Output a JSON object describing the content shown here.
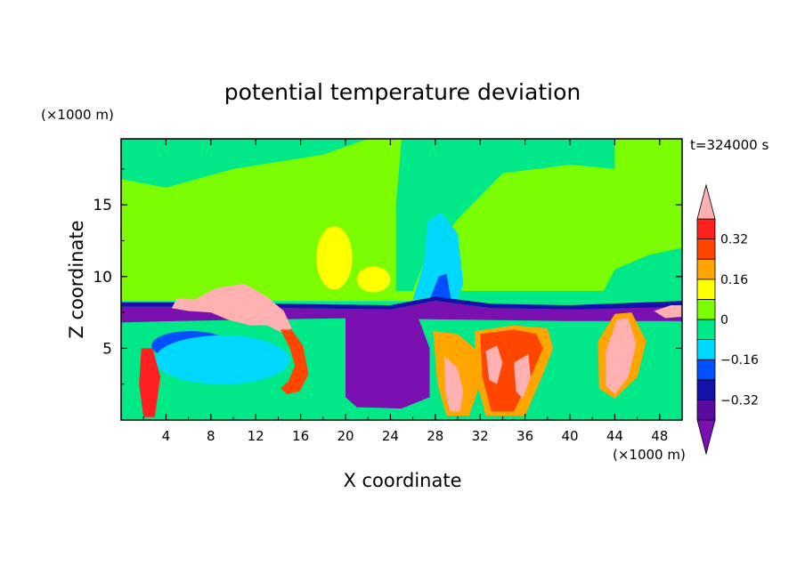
{
  "chart_data": {
    "type": "heatmap",
    "title": "potential temperature deviation",
    "xlabel": "X coordinate",
    "ylabel": "Z coordinate",
    "x_unit": "(×1000 m)",
    "y_unit": "(×1000 m)",
    "time_label": "t=324000 s",
    "xlim": [
      0,
      50
    ],
    "ylim": [
      0,
      19.6
    ],
    "x_ticks": [
      4,
      8,
      12,
      16,
      20,
      24,
      28,
      32,
      36,
      40,
      44,
      48
    ],
    "y_ticks": [
      5,
      10,
      15
    ],
    "colorbar": {
      "levels": [
        -0.4,
        -0.32,
        -0.24,
        -0.16,
        -0.08,
        0,
        0.08,
        0.16,
        0.24,
        0.32,
        0.4
      ],
      "labels": [
        "-0.32",
        "-0.16",
        "0",
        "0.16",
        "0.32"
      ],
      "label_values": [
        -0.32,
        -0.16,
        0,
        0.16,
        0.32
      ],
      "colors": [
        "#7a10b0",
        "#5a0aa0",
        "#1410a8",
        "#0050ff",
        "#00d8ff",
        "#00e887",
        "#7cfc00",
        "#ffff00",
        "#ffa500",
        "#ff4500",
        "#ff2020",
        "#ffb0b0"
      ],
      "extend": "both"
    },
    "regions": [
      {
        "name": "upper-green-mid",
        "color": "#7cfc00",
        "shape": "rect",
        "x": [
          0,
          50
        ],
        "z": [
          8.3,
          19.6
        ]
      },
      {
        "name": "neutral-band-left",
        "color": "#00e887",
        "shape": "rect",
        "x": [
          0,
          50
        ],
        "z": [
          0,
          8.3
        ]
      },
      {
        "name": "upper-left-neutral",
        "color": "#00e887",
        "shape": "poly",
        "pts": [
          [
            0,
            19.6
          ],
          [
            22,
            19.6
          ],
          [
            18,
            18.5
          ],
          [
            10,
            17.5
          ],
          [
            4,
            16.2
          ],
          [
            0,
            16.8
          ]
        ]
      },
      {
        "name": "upper-mid-neutral",
        "color": "#00e887",
        "shape": "poly",
        "pts": [
          [
            25,
            19.6
          ],
          [
            44,
            19.6
          ],
          [
            44,
            17.5
          ],
          [
            40,
            17.8
          ],
          [
            34,
            17.2
          ],
          [
            30,
            14
          ],
          [
            27,
            11
          ],
          [
            26,
            9
          ],
          [
            24.5,
            9
          ],
          [
            24.5,
            15
          ]
        ]
      },
      {
        "name": "upper-right-neutral",
        "color": "#00e887",
        "shape": "poly",
        "pts": [
          [
            30,
            9
          ],
          [
            43,
            9
          ],
          [
            44,
            10.5
          ],
          [
            47,
            11.5
          ],
          [
            50,
            12
          ],
          [
            50,
            8.3
          ],
          [
            30,
            8.3
          ]
        ]
      },
      {
        "name": "yellow-left",
        "color": "#ffff00",
        "shape": "ellipse",
        "cx": 19,
        "cz": 11.3,
        "rx": 1.6,
        "rz": 2.2
      },
      {
        "name": "yellow-mid",
        "color": "#ffff00",
        "shape": "ellipse",
        "cx": 22.5,
        "cz": 9.8,
        "rx": 1.5,
        "rz": 0.9
      },
      {
        "name": "cyan-column",
        "color": "#00d8ff",
        "shape": "poly",
        "pts": [
          [
            26,
            8.4
          ],
          [
            27,
            11
          ],
          [
            27.3,
            13.8
          ],
          [
            28.5,
            14.5
          ],
          [
            30,
            13
          ],
          [
            30.5,
            9.5
          ],
          [
            30,
            8.4
          ]
        ]
      },
      {
        "name": "blue-column",
        "color": "#0050ff",
        "shape": "poly",
        "pts": [
          [
            27.5,
            8.4
          ],
          [
            28.3,
            10
          ],
          [
            29,
            10.2
          ],
          [
            29.4,
            8.4
          ]
        ]
      },
      {
        "name": "purple-layer",
        "color": "#7a10b0",
        "shape": "poly",
        "pts": [
          [
            0,
            7.9
          ],
          [
            7,
            7.9
          ],
          [
            15,
            7.8
          ],
          [
            24,
            7.7
          ],
          [
            28,
            8.3
          ],
          [
            33,
            7.8
          ],
          [
            40,
            7.7
          ],
          [
            50,
            8.0
          ],
          [
            50,
            6.9
          ],
          [
            40,
            6.9
          ],
          [
            30,
            7.0
          ],
          [
            21,
            7.1
          ],
          [
            12,
            7.0
          ],
          [
            5,
            6.9
          ],
          [
            0,
            6.8
          ]
        ]
      },
      {
        "name": "dark-blue-rim",
        "color": "#1410a8",
        "shape": "poly",
        "pts": [
          [
            0,
            8.2
          ],
          [
            7,
            8.2
          ],
          [
            15,
            8.1
          ],
          [
            24,
            8.0
          ],
          [
            28,
            8.6
          ],
          [
            33,
            8.1
          ],
          [
            40,
            8.0
          ],
          [
            50,
            8.3
          ],
          [
            50,
            7.9
          ],
          [
            40,
            7.7
          ],
          [
            33,
            7.8
          ],
          [
            28,
            8.3
          ],
          [
            24,
            7.7
          ],
          [
            15,
            7.8
          ],
          [
            7,
            7.9
          ],
          [
            0,
            7.9
          ]
        ]
      },
      {
        "name": "purple-block",
        "color": "#7a10b0",
        "shape": "poly",
        "pts": [
          [
            20,
            7.2
          ],
          [
            26.5,
            7.1
          ],
          [
            27.5,
            5.0
          ],
          [
            27.5,
            1.6
          ],
          [
            25,
            0.8
          ],
          [
            21,
            0.9
          ],
          [
            20,
            1.6
          ]
        ]
      },
      {
        "name": "blue-patch-left",
        "color": "#0050ff",
        "shape": "ellipse",
        "cx": 6.2,
        "cz": 5.2,
        "rx": 3.5,
        "rz": 1.0
      },
      {
        "name": "cyan-lower-left",
        "color": "#00d8ff",
        "shape": "ellipse",
        "cx": 9,
        "cz": 4.2,
        "rx": 6,
        "rz": 1.7
      },
      {
        "name": "red-streak-left",
        "color": "#ff2020",
        "shape": "poly",
        "pts": [
          [
            1.8,
            5.0
          ],
          [
            2.8,
            5.0
          ],
          [
            3.5,
            3
          ],
          [
            3.0,
            0.2
          ],
          [
            2.0,
            0.2
          ],
          [
            1.6,
            2.5
          ]
        ]
      },
      {
        "name": "pink-region-left",
        "color": "#ffb0b0",
        "shape": "poly",
        "pts": [
          [
            4.5,
            7.8
          ],
          [
            5.0,
            8.5
          ],
          [
            6.5,
            8.4
          ],
          [
            8.5,
            9.2
          ],
          [
            11,
            9.5
          ],
          [
            13,
            8.6
          ],
          [
            14.5,
            7.6
          ],
          [
            15.2,
            6.4
          ],
          [
            14.3,
            6.1
          ],
          [
            13,
            6.6
          ],
          [
            11.5,
            6.6
          ],
          [
            9.5,
            7.0
          ],
          [
            8,
            7.5
          ],
          [
            6,
            7.6
          ]
        ]
      },
      {
        "name": "red-plume-mid-left",
        "color": "#ff4500",
        "shape": "poly",
        "pts": [
          [
            14.2,
            6.3
          ],
          [
            15.2,
            6.3
          ],
          [
            16.2,
            5.2
          ],
          [
            16.7,
            3.2
          ],
          [
            15.9,
            2.0
          ],
          [
            14.8,
            1.8
          ],
          [
            14.2,
            2.2
          ],
          [
            14.9,
            2.7
          ],
          [
            15.5,
            3.8
          ],
          [
            15.0,
            5.1
          ]
        ]
      },
      {
        "name": "orange-right-1",
        "color": "#ffa500",
        "shape": "poly",
        "pts": [
          [
            27.8,
            6.2
          ],
          [
            30,
            6.0
          ],
          [
            31.5,
            5.0
          ],
          [
            32,
            2.5
          ],
          [
            31,
            0.3
          ],
          [
            29,
            0.3
          ],
          [
            28.2,
            2.5
          ]
        ]
      },
      {
        "name": "pink-right-1",
        "color": "#ffb0b0",
        "shape": "poly",
        "pts": [
          [
            28.8,
            4.5
          ],
          [
            30,
            3.6
          ],
          [
            30.5,
            2.0
          ],
          [
            30.2,
            0.6
          ],
          [
            29.3,
            0.6
          ],
          [
            28.9,
            2.0
          ]
        ]
      },
      {
        "name": "orange-right-2",
        "color": "#ffa500",
        "shape": "poly",
        "pts": [
          [
            31.5,
            6.2
          ],
          [
            35,
            6.6
          ],
          [
            38,
            6.4
          ],
          [
            38.5,
            5.0
          ],
          [
            37.5,
            3.0
          ],
          [
            36,
            0.3
          ],
          [
            32.5,
            0.3
          ],
          [
            31.6,
            3.0
          ]
        ]
      },
      {
        "name": "red-right-2",
        "color": "#ff4500",
        "shape": "poly",
        "pts": [
          [
            32,
            6.0
          ],
          [
            35,
            6.3
          ],
          [
            37,
            6.0
          ],
          [
            37.6,
            5.0
          ],
          [
            36.5,
            3.0
          ],
          [
            35,
            0.6
          ],
          [
            33,
            0.6
          ],
          [
            32.2,
            3.0
          ]
        ]
      },
      {
        "name": "pink-right-2",
        "color": "#ffb0b0",
        "shape": "poly",
        "pts": [
          [
            32.5,
            4.8
          ],
          [
            33.5,
            5.2
          ],
          [
            34,
            4.0
          ],
          [
            33.5,
            2.5
          ],
          [
            32.8,
            2.8
          ]
        ]
      },
      {
        "name": "pink-right-3",
        "color": "#ffb0b0",
        "shape": "poly",
        "pts": [
          [
            35,
            4.0
          ],
          [
            36.3,
            4.6
          ],
          [
            36.5,
            3.0
          ],
          [
            35.8,
            1.5
          ],
          [
            35.2,
            2.0
          ]
        ]
      },
      {
        "name": "orange-far-right",
        "color": "#ffa500",
        "shape": "poly",
        "pts": [
          [
            42.5,
            5.5
          ],
          [
            44,
            7.4
          ],
          [
            45.5,
            7.5
          ],
          [
            46.8,
            5.5
          ],
          [
            46,
            3.0
          ],
          [
            44,
            1.5
          ],
          [
            42.6,
            2.2
          ]
        ]
      },
      {
        "name": "pink-far-right",
        "color": "#ffb0b0",
        "shape": "poly",
        "pts": [
          [
            43.2,
            4.8
          ],
          [
            44.2,
            7.0
          ],
          [
            45.2,
            7.1
          ],
          [
            45.9,
            5.3
          ],
          [
            45.2,
            3.0
          ],
          [
            44,
            1.8
          ],
          [
            43.2,
            2.4
          ]
        ]
      },
      {
        "name": "pink-edge-right",
        "color": "#ffb0b0",
        "shape": "poly",
        "pts": [
          [
            47.5,
            7.6
          ],
          [
            49,
            8.0
          ],
          [
            50,
            8.0
          ],
          [
            50,
            7.2
          ],
          [
            48.5,
            7.1
          ]
        ]
      }
    ]
  }
}
